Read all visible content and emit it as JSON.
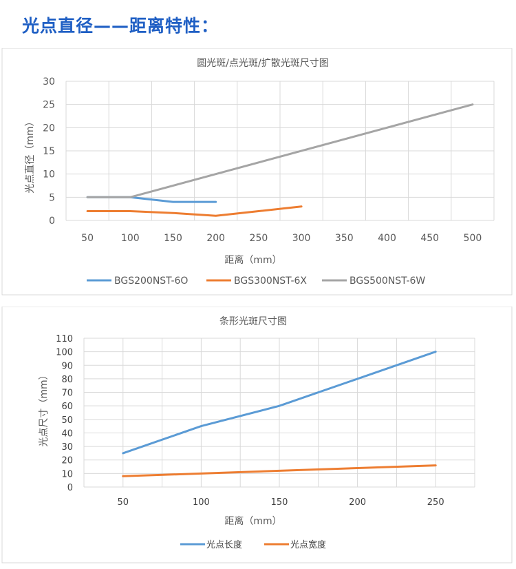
{
  "page": {
    "heading": "光点直径——距离特性："
  },
  "chart_data": [
    {
      "type": "line",
      "title": "圆光斑/点光斑/扩散光斑尺寸图",
      "xlabel": "距离（mm）",
      "ylabel": "光点直径（mm）",
      "xlim": [
        50,
        500
      ],
      "ylim": [
        0,
        30
      ],
      "x_ticks": [
        50,
        100,
        150,
        200,
        250,
        300,
        350,
        400,
        450,
        500
      ],
      "y_ticks": [
        0,
        5,
        10,
        15,
        20,
        25,
        30
      ],
      "grid": true,
      "legend": "bottom",
      "series": [
        {
          "name": "BGS200NST-6O",
          "color": "#5b9bd5",
          "x": [
            50,
            100,
            150,
            200
          ],
          "y": [
            5,
            5,
            4,
            4
          ]
        },
        {
          "name": "BGS300NST-6X",
          "color": "#ed7d31",
          "x": [
            50,
            100,
            150,
            200,
            250,
            300
          ],
          "y": [
            2,
            2,
            1.6,
            1,
            2,
            3
          ]
        },
        {
          "name": "BGS500NST-6W",
          "color": "#a5a5a5",
          "x": [
            50,
            100,
            500
          ],
          "y": [
            5,
            5,
            25
          ]
        }
      ]
    },
    {
      "type": "line",
      "title": "条形光斑尺寸图",
      "xlabel": "距离（mm）",
      "ylabel": "光点尺寸（mm）",
      "categories": [
        50,
        100,
        150,
        200,
        250
      ],
      "ylim": [
        0,
        110
      ],
      "y_ticks": [
        0,
        10,
        20,
        30,
        40,
        50,
        60,
        70,
        80,
        90,
        100,
        110
      ],
      "grid": true,
      "legend": "bottom",
      "series": [
        {
          "name": "光点长度",
          "color": "#5b9bd5",
          "values": [
            25,
            45,
            60,
            80,
            100
          ]
        },
        {
          "name": "光点宽度",
          "color": "#ed7d31",
          "values": [
            8,
            10,
            12,
            14,
            16
          ]
        }
      ]
    }
  ]
}
